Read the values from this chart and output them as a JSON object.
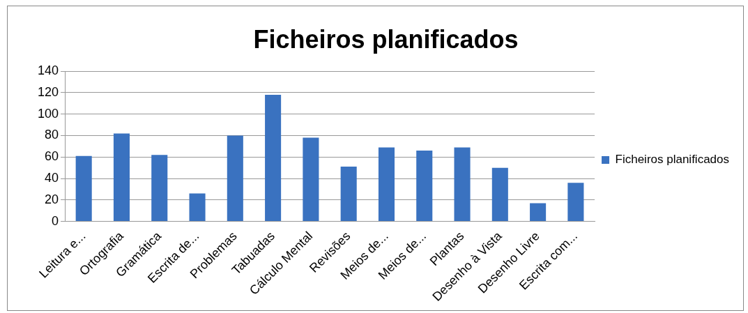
{
  "chart_data": {
    "type": "bar",
    "title": "Ficheiros planificados",
    "categories": [
      "Leitura e...",
      "Ortografia",
      "Gramática",
      "Escrita de...",
      "Problemas",
      "Tabuadas",
      "Cálculo Mental",
      "Revisões",
      "Meios de...",
      "Meios de...",
      "Plantas",
      "Desenho à Vista",
      "Desenho Livre",
      "Escrita com..."
    ],
    "series": [
      {
        "name": "Ficheiros planificados",
        "color": "#3a72c0",
        "values": [
          61,
          82,
          62,
          26,
          80,
          118,
          78,
          51,
          69,
          66,
          69,
          50,
          17,
          36
        ]
      }
    ],
    "ylim": [
      0,
      140
    ],
    "yticks": [
      0,
      20,
      40,
      60,
      80,
      100,
      120,
      140
    ],
    "grid": "y",
    "legend": "right"
  }
}
